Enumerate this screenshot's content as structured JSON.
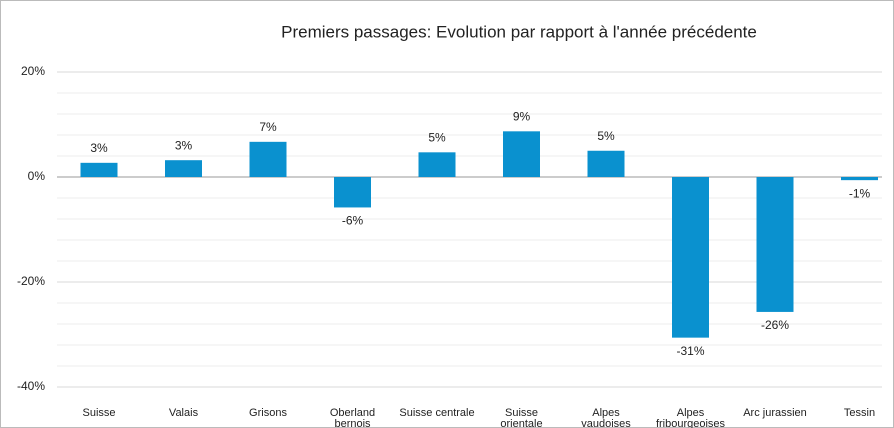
{
  "chart_data": {
    "type": "bar",
    "title": "Premiers passages: Evolution par rapport à l'année précédente",
    "categories": [
      "Suisse",
      "Valais",
      "Grisons",
      "Oberland bernois",
      "Suisse centrale",
      "Suisse orientale",
      "Alpes vaudoises",
      "Alpes fribourgeoises",
      "Arc jurassien",
      "Tessin"
    ],
    "values": [
      2.7,
      3.2,
      6.7,
      -5.8,
      4.7,
      8.7,
      5.0,
      -30.6,
      -25.7,
      -0.6
    ],
    "value_labels": [
      "3%",
      "3%",
      "7%",
      "-6%",
      "5%",
      "9%",
      "5%",
      "-31%",
      "-26%",
      "-1%"
    ],
    "color": "#0a91cf",
    "ylim": [
      -40,
      20
    ],
    "yticks": [
      {
        "value": 20,
        "label": "20%"
      },
      {
        "value": 0,
        "label": "0%"
      },
      {
        "value": -20,
        "label": "-20%"
      },
      {
        "value": -40,
        "label": "-40%"
      }
    ],
    "minor_yticks": [
      16,
      12,
      8,
      4,
      -4,
      -8,
      -12,
      -16,
      -24,
      -28,
      -32,
      -36
    ],
    "grid": true
  }
}
